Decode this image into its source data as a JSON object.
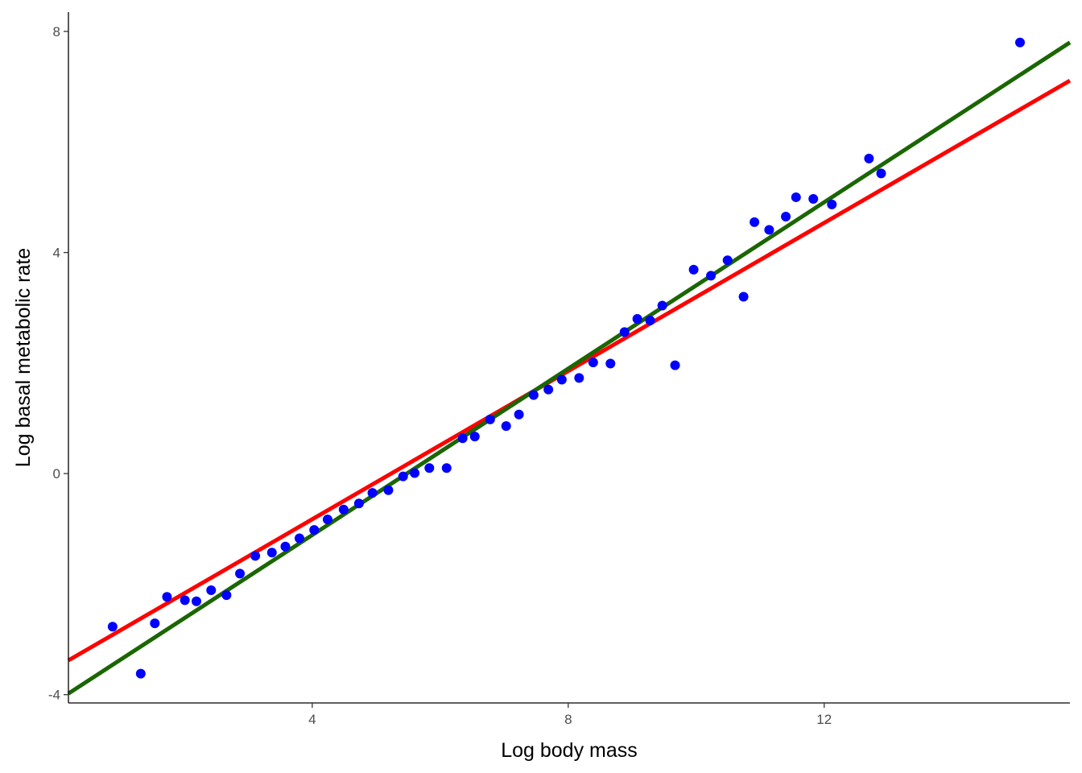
{
  "chart_data": {
    "type": "scatter",
    "xlabel": "Log body mass",
    "ylabel": "Log basal metabolic rate",
    "xlim": [
      0.19,
      15.84
    ],
    "ylim": [
      -4.15,
      8.35
    ],
    "x_ticks": [
      4,
      8,
      12
    ],
    "x_tick_labels": [
      "4",
      "8",
      "12"
    ],
    "y_ticks": [
      -4,
      0,
      4,
      8
    ],
    "y_tick_labels": [
      "-4",
      "0",
      "4",
      "8"
    ],
    "grid": false,
    "legend": "none",
    "points": {
      "color": "#0000ff",
      "x": [
        0.88,
        1.32,
        1.54,
        1.73,
        2.01,
        2.19,
        2.42,
        2.66,
        2.87,
        3.11,
        3.37,
        3.58,
        3.8,
        4.03,
        4.24,
        4.49,
        4.73,
        4.94,
        5.19,
        5.42,
        5.6,
        5.83,
        6.1,
        6.35,
        6.54,
        6.78,
        7.03,
        7.23,
        7.46,
        7.69,
        7.9,
        8.17,
        8.39,
        8.66,
        8.88,
        9.08,
        9.28,
        9.47,
        9.67,
        9.96,
        10.23,
        10.49,
        10.74,
        10.91,
        11.14,
        11.4,
        11.56,
        11.83,
        12.12,
        12.7,
        12.89,
        15.06
      ],
      "y": [
        -2.77,
        -3.62,
        -2.71,
        -2.23,
        -2.29,
        -2.31,
        -2.11,
        -2.2,
        -1.81,
        -1.49,
        -1.43,
        -1.32,
        -1.17,
        -1.02,
        -0.83,
        -0.65,
        -0.54,
        -0.35,
        -0.3,
        -0.05,
        0.01,
        0.1,
        0.1,
        0.64,
        0.67,
        0.98,
        0.86,
        1.07,
        1.42,
        1.52,
        1.7,
        1.73,
        2.01,
        1.99,
        2.56,
        2.8,
        2.77,
        3.04,
        1.96,
        3.69,
        3.58,
        3.86,
        3.2,
        4.55,
        4.41,
        4.65,
        5.0,
        4.97,
        4.87,
        5.7,
        5.43,
        7.8
      ]
    },
    "lines": [
      {
        "color": "#ff0000",
        "x": [
          0.19,
          15.84
        ],
        "y": [
          -3.38,
          7.11
        ]
      },
      {
        "color": "#1a6600",
        "x": [
          0.19,
          15.84
        ],
        "y": [
          -3.98,
          7.8
        ]
      }
    ]
  }
}
